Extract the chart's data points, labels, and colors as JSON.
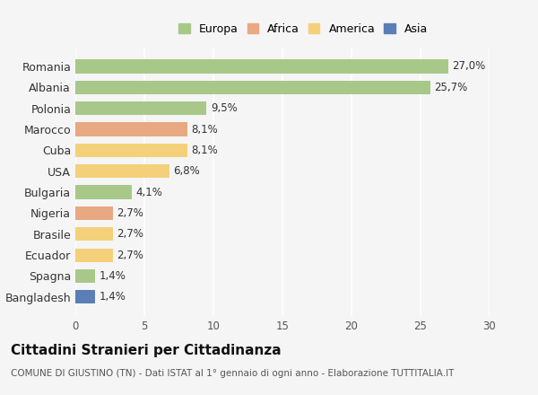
{
  "countries": [
    "Romania",
    "Albania",
    "Polonia",
    "Marocco",
    "Cuba",
    "USA",
    "Bulgaria",
    "Nigeria",
    "Brasile",
    "Ecuador",
    "Spagna",
    "Bangladesh"
  ],
  "values": [
    27.0,
    25.7,
    9.5,
    8.1,
    8.1,
    6.8,
    4.1,
    2.7,
    2.7,
    2.7,
    1.4,
    1.4
  ],
  "labels": [
    "27,0%",
    "25,7%",
    "9,5%",
    "8,1%",
    "8,1%",
    "6,8%",
    "4,1%",
    "2,7%",
    "2,7%",
    "2,7%",
    "1,4%",
    "1,4%"
  ],
  "colors": [
    "#a8c88a",
    "#a8c88a",
    "#a8c88a",
    "#e8a882",
    "#f5d07a",
    "#f5d07a",
    "#a8c88a",
    "#e8a882",
    "#f5d07a",
    "#f5d07a",
    "#a8c88a",
    "#5b7fb5"
  ],
  "legend_labels": [
    "Europa",
    "Africa",
    "America",
    "Asia"
  ],
  "legend_colors": [
    "#a8c88a",
    "#e8a882",
    "#f5d07a",
    "#5b7fb5"
  ],
  "title": "Cittadini Stranieri per Cittadinanza",
  "subtitle": "COMUNE DI GIUSTINO (TN) - Dati ISTAT al 1° gennaio di ogni anno - Elaborazione TUTTITALIA.IT",
  "xlim": [
    0,
    30
  ],
  "xticks": [
    0,
    5,
    10,
    15,
    20,
    25,
    30
  ],
  "bg_color": "#f5f5f5",
  "grid_color": "#ffffff",
  "bar_height": 0.65,
  "label_fontsize": 8.5,
  "ytick_fontsize": 9,
  "xtick_fontsize": 8.5,
  "title_fontsize": 11,
  "subtitle_fontsize": 7.5
}
